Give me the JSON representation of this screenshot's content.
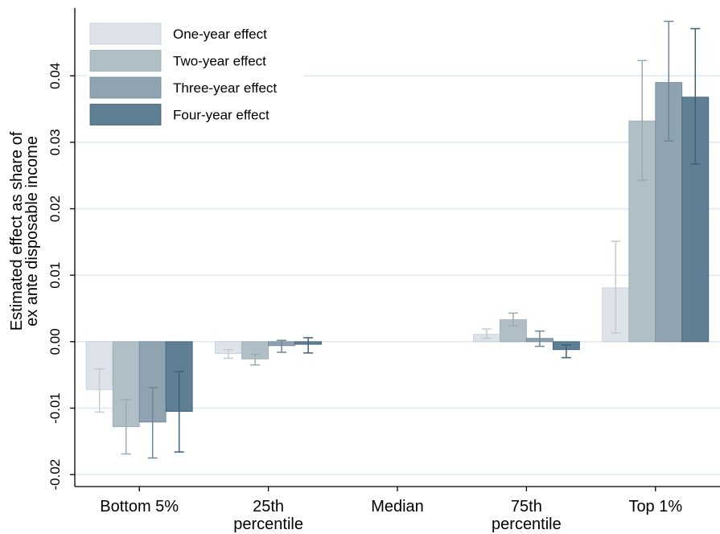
{
  "chart_data": {
    "type": "bar",
    "ylabel": [
      "Estimated effect as share of",
      "ex ante disposable income"
    ],
    "categories": [
      "Bottom 5%",
      "25th percentile",
      "Median",
      "75th percentile",
      "Top 1%"
    ],
    "series": [
      {
        "name": "One-year effect",
        "color": "#dde3e8",
        "error_color": "#c3ccd4",
        "values": [
          -0.0072,
          -0.0018,
          null,
          0.0011,
          0.0081
        ],
        "lower": [
          -0.0106,
          -0.0025,
          null,
          0.0005,
          0.0013
        ],
        "upper": [
          -0.0041,
          -0.0012,
          null,
          0.0019,
          0.0151
        ]
      },
      {
        "name": "Two-year effect",
        "color": "#b0bec6",
        "error_color": "#9aabb6",
        "values": [
          -0.0128,
          -0.0026,
          null,
          0.0033,
          0.0332
        ],
        "lower": [
          -0.0169,
          -0.0035,
          null,
          0.0024,
          0.0243
        ],
        "upper": [
          -0.0087,
          -0.0019,
          null,
          0.0043,
          0.0423
        ]
      },
      {
        "name": "Three-year effect",
        "color": "#8fa3b0",
        "error_color": "#6e8698",
        "values": [
          -0.0121,
          -0.0006,
          null,
          0.0005,
          0.039
        ],
        "lower": [
          -0.0175,
          -0.0016,
          null,
          -0.0007,
          0.0302
        ],
        "upper": [
          -0.0069,
          0.0002,
          null,
          0.0016,
          0.0482
        ]
      },
      {
        "name": "Four-year effect",
        "color": "#5f7f95",
        "error_color": "#3d6078",
        "values": [
          -0.0105,
          -0.0004,
          null,
          -0.0012,
          0.0368
        ],
        "lower": [
          -0.0166,
          -0.0017,
          null,
          -0.0024,
          0.0267
        ],
        "upper": [
          -0.0045,
          0.0006,
          null,
          -0.0005,
          0.0471
        ]
      }
    ],
    "ylim": [
      -0.0218,
      0.0502
    ],
    "yticks": [
      -0.02,
      -0.01,
      {
        "value": 0,
        "label": "0.00"
      },
      0.01,
      0.02,
      0.03,
      0.04
    ],
    "grid": true,
    "legend": "top-left"
  }
}
